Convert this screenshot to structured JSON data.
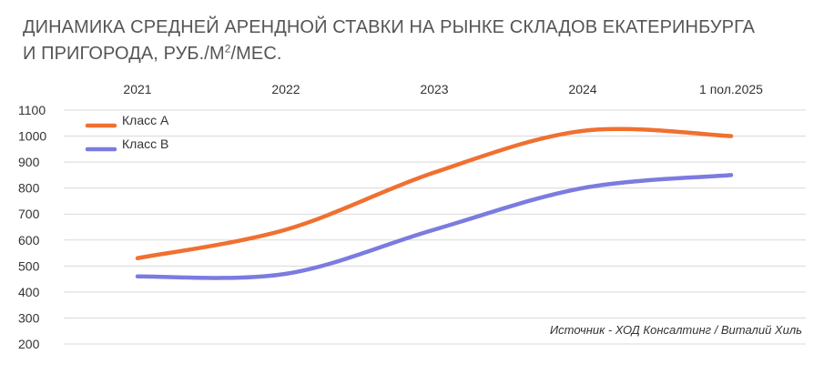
{
  "title": {
    "line1": "ДИНАМИКА СРЕДНЕЙ АРЕНДНОЙ СТАВКИ НА РЫНКЕ СКЛАДОВ ЕКАТЕРИНБУРГА",
    "line2_pre": "И ПРИГОРОДА, РУБ./М",
    "line2_sup": "2",
    "line2_post": "/МЕС."
  },
  "source": "Источник - ХОД Консалтинг / Виталий Хиль",
  "chart_data": {
    "type": "line",
    "title": "ДИНАМИКА СРЕДНЕЙ АРЕНДНОЙ СТАВКИ НА РЫНКЕ СКЛАДОВ ЕКАТЕРИНБУРГА И ПРИГОРОДА, РУБ./М2/МЕС.",
    "categories": [
      "2021",
      "2022",
      "2023",
      "2024",
      "1 пол.2025"
    ],
    "x_axis_position": "top",
    "ylim": [
      200,
      1100
    ],
    "y_ticks": [
      200,
      300,
      400,
      500,
      600,
      700,
      800,
      900,
      1000,
      1100
    ],
    "grid": true,
    "legend_position": "top-left",
    "series": [
      {
        "name": "Класс А",
        "color": "#F07030",
        "values": [
          530,
          640,
          860,
          1020,
          1000
        ]
      },
      {
        "name": "Класс В",
        "color": "#7B7BE0",
        "values": [
          460,
          470,
          640,
          800,
          850
        ]
      }
    ],
    "xlabel": "",
    "ylabel": ""
  }
}
